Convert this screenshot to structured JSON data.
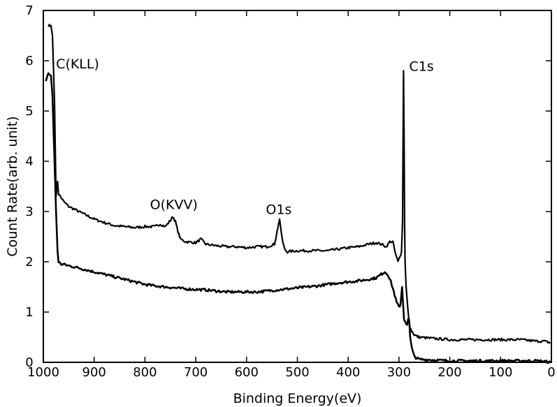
{
  "chart_data": {
    "type": "line",
    "title": "",
    "xlabel": "Binding Energy(eV)",
    "ylabel": "Count Rate(arb. unit)",
    "xlim": [
      1000,
      0
    ],
    "ylim": [
      0,
      7
    ],
    "x_ticks": [
      1000,
      900,
      800,
      700,
      600,
      500,
      400,
      300,
      200,
      100,
      0
    ],
    "y_ticks": [
      0,
      1,
      2,
      3,
      4,
      5,
      6,
      7
    ],
    "grid": false,
    "colors": {
      "line": "#000000",
      "axis": "#000000"
    },
    "series": [
      {
        "x": [
          990,
          985,
          982,
          978,
          975,
          972,
          970,
          960,
          950,
          940,
          920,
          900,
          880,
          860,
          840,
          820,
          800,
          780,
          770,
          760,
          750,
          745,
          740,
          735,
          730,
          720,
          700,
          690,
          680,
          660,
          640,
          620,
          600,
          580,
          560,
          545,
          540,
          535,
          530,
          525,
          520,
          500,
          480,
          460,
          440,
          420,
          400,
          380,
          360,
          345,
          335,
          325,
          318,
          312,
          308,
          302,
          298,
          295,
          293,
          291,
          290,
          289,
          288,
          286,
          284,
          282,
          280,
          278,
          275,
          272,
          270,
          265,
          260,
          240,
          200,
          150,
          100,
          60,
          30,
          15,
          5,
          2
        ],
        "y": [
          6.7,
          6.7,
          6.5,
          5.2,
          3.3,
          3.6,
          3.35,
          3.2,
          3.1,
          3.05,
          2.95,
          2.85,
          2.78,
          2.72,
          2.7,
          2.68,
          2.7,
          2.7,
          2.75,
          2.7,
          2.82,
          2.9,
          2.8,
          2.6,
          2.45,
          2.4,
          2.38,
          2.45,
          2.35,
          2.32,
          2.3,
          2.3,
          2.28,
          2.3,
          2.3,
          2.35,
          2.6,
          2.85,
          2.45,
          2.25,
          2.2,
          2.22,
          2.22,
          2.22,
          2.22,
          2.25,
          2.28,
          2.3,
          2.35,
          2.38,
          2.35,
          2.3,
          2.4,
          2.4,
          2.2,
          2.0,
          2.1,
          2.2,
          2.8,
          5.8,
          4.5,
          2.8,
          2.0,
          1.5,
          1.25,
          1.0,
          0.8,
          0.7,
          0.62,
          0.58,
          0.55,
          0.52,
          0.5,
          0.48,
          0.45,
          0.45,
          0.45,
          0.45,
          0.42,
          0.42,
          0.4,
          0.38
        ]
      },
      {
        "x": [
          995,
          990,
          985,
          982,
          978,
          975,
          972,
          970,
          965,
          960,
          950,
          940,
          920,
          900,
          880,
          860,
          840,
          820,
          800,
          780,
          760,
          740,
          720,
          700,
          680,
          660,
          640,
          620,
          600,
          580,
          560,
          540,
          520,
          500,
          480,
          460,
          440,
          420,
          400,
          380,
          360,
          345,
          335,
          328,
          322,
          316,
          310,
          305,
          300,
          297,
          294,
          290,
          287,
          284,
          282,
          280,
          278,
          275,
          272,
          270,
          265,
          260,
          240,
          200,
          150,
          100,
          60,
          30,
          15,
          8,
          2
        ],
        "y": [
          5.6,
          5.75,
          5.7,
          5.3,
          4.0,
          3.0,
          2.2,
          2.0,
          1.95,
          1.95,
          1.92,
          1.9,
          1.85,
          1.8,
          1.75,
          1.7,
          1.65,
          1.6,
          1.55,
          1.52,
          1.5,
          1.48,
          1.46,
          1.45,
          1.44,
          1.42,
          1.4,
          1.4,
          1.4,
          1.4,
          1.42,
          1.44,
          1.46,
          1.48,
          1.5,
          1.52,
          1.55,
          1.58,
          1.6,
          1.62,
          1.65,
          1.68,
          1.75,
          1.8,
          1.75,
          1.6,
          1.4,
          1.2,
          1.1,
          1.15,
          1.5,
          0.85,
          0.8,
          0.75,
          0.85,
          0.85,
          0.5,
          0.3,
          0.18,
          0.12,
          0.08,
          0.06,
          0.05,
          0.03,
          0.03,
          0.03,
          0.03,
          0.03,
          0.02,
          0.01,
          0.0
        ]
      }
    ],
    "annotations": [
      {
        "text": "C(KLL)",
        "x": 975,
        "y": 5.85
      },
      {
        "text": "O(KVV)",
        "x": 790,
        "y": 3.05
      },
      {
        "text": "O1s",
        "x": 562,
        "y": 2.95
      },
      {
        "text": "C1s",
        "x": 280,
        "y": 5.8
      }
    ]
  }
}
